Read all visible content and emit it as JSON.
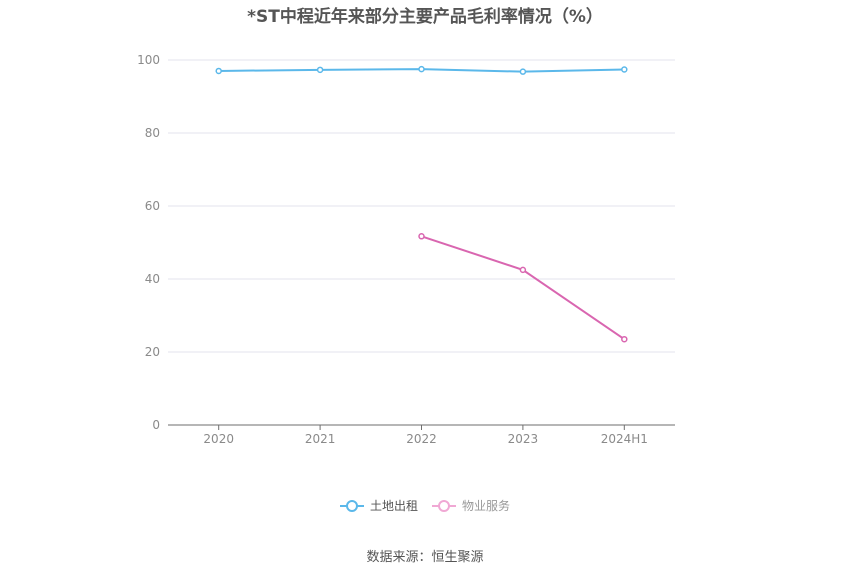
{
  "chart_data": {
    "type": "line",
    "title": "*ST中程近年来部分主要产品毛利率情况（%）",
    "categories": [
      "2020",
      "2021",
      "2022",
      "2023",
      "2024H1"
    ],
    "ylim": [
      0,
      100
    ],
    "yticks": [
      0,
      20,
      40,
      60,
      80,
      100
    ],
    "grid": true,
    "legend_position": "bottom",
    "series": [
      {
        "name": "土地出租",
        "color": "#5bb8ea",
        "values": [
          97.0,
          97.3,
          97.5,
          96.8,
          97.4
        ]
      },
      {
        "name": "物业服务",
        "color": "#d966b0",
        "values": [
          null,
          null,
          51.7,
          42.5,
          23.5
        ]
      }
    ],
    "source": "数据来源：恒生聚源"
  }
}
